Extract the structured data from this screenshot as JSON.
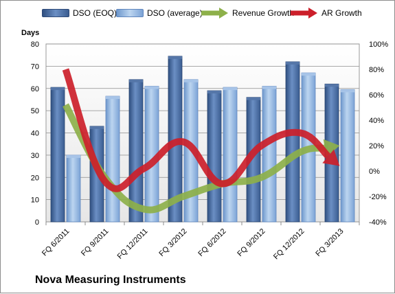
{
  "chart_data": {
    "type": "bar",
    "title": "Nova Measuring Instruments",
    "y_left_label": "Days",
    "y_left_range": [
      0,
      80
    ],
    "y_left_ticks": [
      "0",
      "10",
      "20",
      "30",
      "40",
      "50",
      "60",
      "70",
      "80"
    ],
    "y_right_range": [
      -40,
      100
    ],
    "y_right_ticks": [
      "-40%",
      "-20%",
      "0%",
      "20%",
      "40%",
      "60%",
      "80%",
      "100%"
    ],
    "categories": [
      "FQ 6/2011",
      "FQ 9/2011",
      "FQ 12/2011",
      "FQ 3/2012",
      "FQ 6/2012",
      "FQ 9/2012",
      "FQ 12/2012",
      "FQ 3/2013"
    ],
    "series": [
      {
        "name": "DSO (EOQ)",
        "kind": "bar",
        "axis": "left",
        "color": "#4a6fa5",
        "values": [
          60.5,
          43,
          64,
          74.5,
          59,
          56,
          72,
          62
        ]
      },
      {
        "name": "DSO (average)",
        "kind": "bar",
        "axis": "left",
        "color": "#8fb3df",
        "values": [
          30,
          56.5,
          61,
          64,
          60.5,
          61,
          67,
          59.5
        ]
      },
      {
        "name": "Revenue Growth",
        "kind": "arrow",
        "axis": "right",
        "color": "#8db04a",
        "values": [
          52,
          -5,
          -30,
          -20,
          -10,
          -5,
          15,
          20
        ]
      },
      {
        "name": "AR Growth",
        "kind": "arrow",
        "axis": "right",
        "color": "#cc1f2a",
        "values": [
          80,
          -8,
          2,
          23,
          -10,
          20,
          30,
          4
        ]
      }
    ],
    "grid": true,
    "legend_position": "top"
  }
}
